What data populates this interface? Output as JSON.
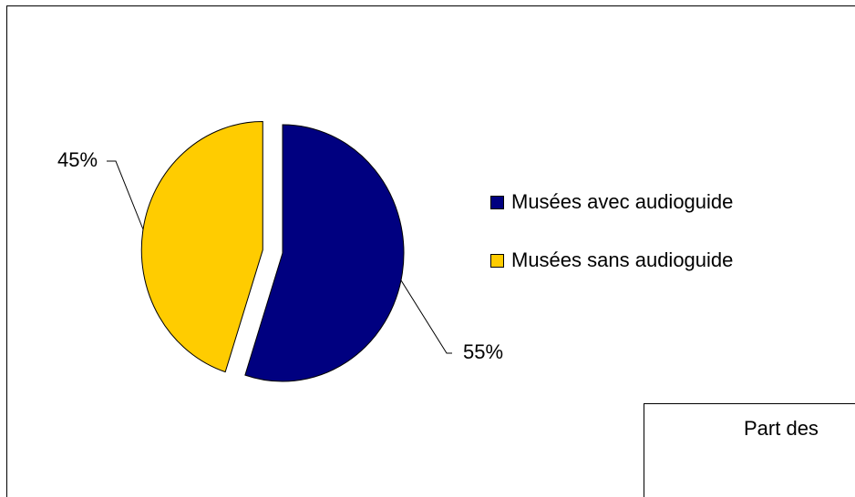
{
  "chart_data": {
    "type": "pie",
    "title": "Part des",
    "categories": [
      "Musées avec audioguide",
      "Musées sans audioguide"
    ],
    "values": [
      55,
      45
    ],
    "value_labels": [
      "55%",
      "45%"
    ],
    "colors": [
      "#000080",
      "#ffcc00"
    ],
    "legend": "right"
  }
}
